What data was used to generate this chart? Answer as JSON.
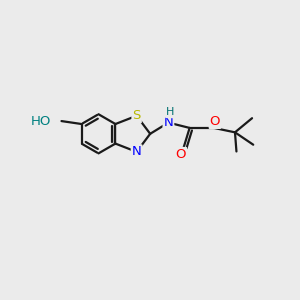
{
  "background_color": "#ebebeb",
  "bond_color": "#1a1a1a",
  "atom_colors": {
    "S": "#b8b800",
    "N": "#0000ff",
    "O": "#ff0000",
    "HO": "#008080",
    "C": "#1a1a1a"
  },
  "figsize": [
    3.0,
    3.0
  ],
  "dpi": 100,
  "lw": 1.6,
  "fs": 9.5
}
